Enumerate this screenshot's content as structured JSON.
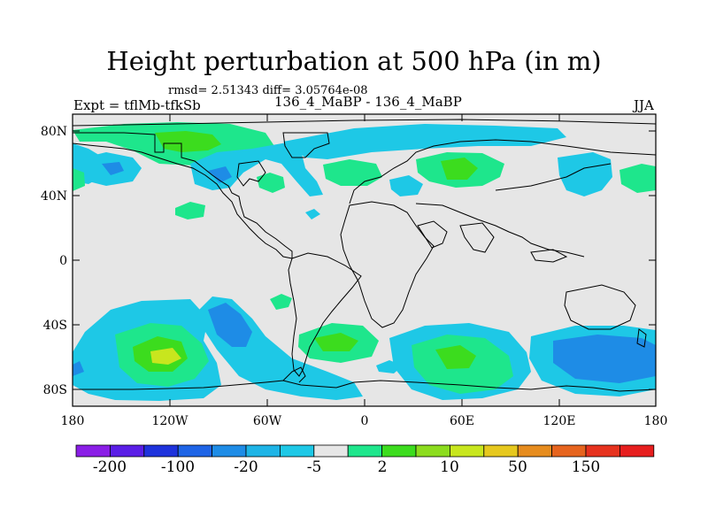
{
  "title": "Height perturbation at 500 hPa (in m)",
  "stats": "rmsd= 2.51343 diff= 3.05764e-08",
  "left_label": "Expt = tflMb-tfkSb",
  "center_label": "136_4_MaBP - 136_4_MaBP",
  "right_label": "JJA",
  "lat_ticks": [
    "80N",
    "40N",
    "0",
    "40S",
    "80S"
  ],
  "lon_ticks": [
    "180",
    "120W",
    "60W",
    "0",
    "60E",
    "120E",
    "180"
  ],
  "colorbar": {
    "colors": [
      "#8a1ee6",
      "#5a1ee6",
      "#1e32dc",
      "#1e64e6",
      "#1e8ce6",
      "#1eb4e6",
      "#1ec8e6",
      "#e6e6e6",
      "#1ee68c",
      "#3cdc1e",
      "#8cdc1e",
      "#c8e61e",
      "#e6c81e",
      "#e68c1e",
      "#e6641e",
      "#e6321e",
      "#e61e1e"
    ],
    "labels": [
      "-200",
      "-100",
      "-20",
      "-5",
      "2",
      "10",
      "50",
      "150"
    ]
  },
  "colors": {
    "background": "#e6e6e6",
    "coast": "#000000"
  }
}
